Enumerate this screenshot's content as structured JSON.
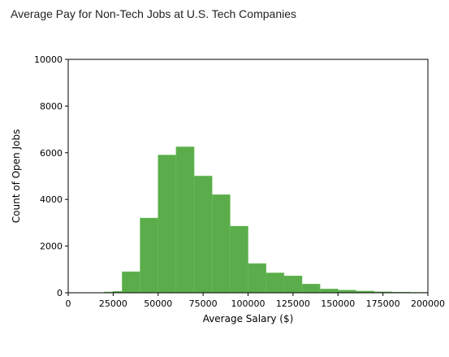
{
  "chart_data": {
    "type": "bar",
    "title": "Average Pay for Non-Tech Jobs at U.S. Tech Companies",
    "xlabel": "Average Salary ($)",
    "ylabel": "Count of Open Jobs",
    "xlim": [
      0,
      200000
    ],
    "ylim": [
      0,
      10000
    ],
    "xticks": [
      0,
      25000,
      50000,
      75000,
      100000,
      125000,
      150000,
      175000,
      200000
    ],
    "yticks": [
      0,
      2000,
      4000,
      6000,
      8000,
      10000
    ],
    "bar_color": "#5aad4a",
    "grid": false,
    "bins": [
      {
        "x0": 20000,
        "x1": 25000,
        "count": 30
      },
      {
        "x0": 25000,
        "x1": 30000,
        "count": 60
      },
      {
        "x0": 30000,
        "x1": 40000,
        "count": 900
      },
      {
        "x0": 40000,
        "x1": 50000,
        "count": 3200
      },
      {
        "x0": 50000,
        "x1": 60000,
        "count": 5900
      },
      {
        "x0": 60000,
        "x1": 70000,
        "count": 6250
      },
      {
        "x0": 70000,
        "x1": 80000,
        "count": 5000
      },
      {
        "x0": 80000,
        "x1": 90000,
        "count": 4200
      },
      {
        "x0": 90000,
        "x1": 100000,
        "count": 2850
      },
      {
        "x0": 100000,
        "x1": 110000,
        "count": 1250
      },
      {
        "x0": 110000,
        "x1": 120000,
        "count": 850
      },
      {
        "x0": 120000,
        "x1": 130000,
        "count": 720
      },
      {
        "x0": 130000,
        "x1": 140000,
        "count": 370
      },
      {
        "x0": 140000,
        "x1": 150000,
        "count": 160
      },
      {
        "x0": 150000,
        "x1": 160000,
        "count": 110
      },
      {
        "x0": 160000,
        "x1": 170000,
        "count": 70
      },
      {
        "x0": 170000,
        "x1": 180000,
        "count": 40
      },
      {
        "x0": 180000,
        "x1": 190000,
        "count": 25
      },
      {
        "x0": 190000,
        "x1": 200000,
        "count": 15
      }
    ]
  }
}
